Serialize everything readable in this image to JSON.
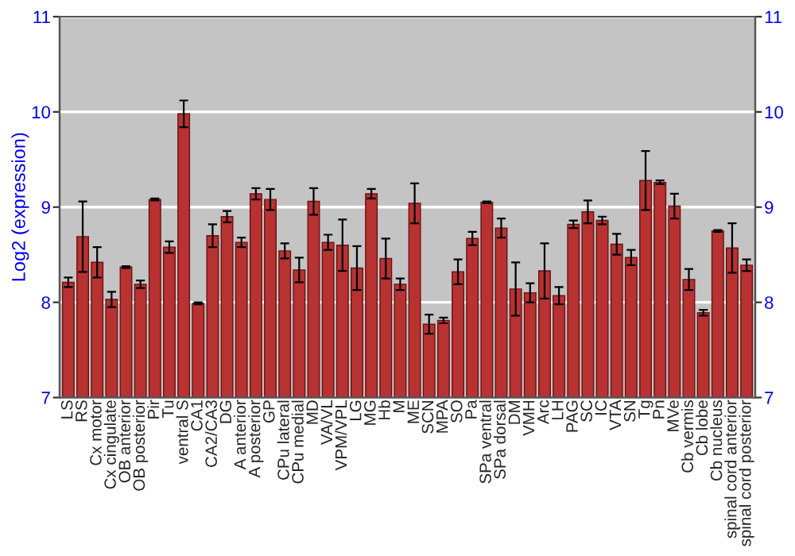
{
  "chart_data": {
    "type": "bar",
    "ylabel": "Log2 (expression)",
    "categories": [
      "LS",
      "RS",
      "Cx motor",
      "Cx cingulate",
      "OB anterior",
      "OB posterior",
      "Pir",
      "Tu",
      "ventral S",
      "CA1",
      "CA2/CA3",
      "DG",
      "A anterior",
      "A posterior",
      "GP",
      "CPu lateral",
      "CPu medial",
      "MD",
      "VA/VL",
      "VPM/VPL",
      "LG",
      "MG",
      "Hb",
      "M",
      "ME",
      "SCN",
      "MPA",
      "SO",
      "Pa",
      "SPa ventral",
      "SPa dorsal",
      "DM",
      "VMH",
      "Arc",
      "LH",
      "PAG",
      "SC",
      "IC",
      "VTA",
      "SN",
      "Tg",
      "Pn",
      "MVe",
      "Cb vermis",
      "Cb lobe",
      "Cb nucleus",
      "spinal cord anterior",
      "spinal cord posterior"
    ],
    "values": [
      8.21,
      8.69,
      8.42,
      8.03,
      8.37,
      8.19,
      9.08,
      8.58,
      9.98,
      7.99,
      8.7,
      8.9,
      8.63,
      9.14,
      9.08,
      8.54,
      8.34,
      9.06,
      8.63,
      8.6,
      8.36,
      9.14,
      8.46,
      8.19,
      9.04,
      7.77,
      7.81,
      8.32,
      8.67,
      9.05,
      8.78,
      8.14,
      8.1,
      8.33,
      8.07,
      8.82,
      8.95,
      8.86,
      8.61,
      8.47,
      9.28,
      9.26,
      9.01,
      8.24,
      7.89,
      8.75,
      8.57,
      8.39
    ],
    "errors": [
      0.05,
      0.37,
      0.16,
      0.08,
      0.01,
      0.04,
      0.01,
      0.06,
      0.14,
      0.01,
      0.12,
      0.06,
      0.05,
      0.06,
      0.11,
      0.08,
      0.13,
      0.14,
      0.08,
      0.27,
      0.23,
      0.05,
      0.21,
      0.06,
      0.21,
      0.1,
      0.03,
      0.13,
      0.07,
      0.01,
      0.1,
      0.28,
      0.1,
      0.29,
      0.09,
      0.04,
      0.12,
      0.04,
      0.11,
      0.08,
      0.31,
      0.02,
      0.13,
      0.11,
      0.03,
      0.01,
      0.26,
      0.06
    ],
    "color": "#b83232",
    "ylim": [
      7,
      11
    ],
    "yticks": [
      7,
      8,
      9,
      10,
      11
    ],
    "y2lim": [
      7,
      11
    ],
    "y2ticks": [
      7,
      8,
      9,
      10,
      11
    ],
    "grid": "y",
    "legend": false
  }
}
